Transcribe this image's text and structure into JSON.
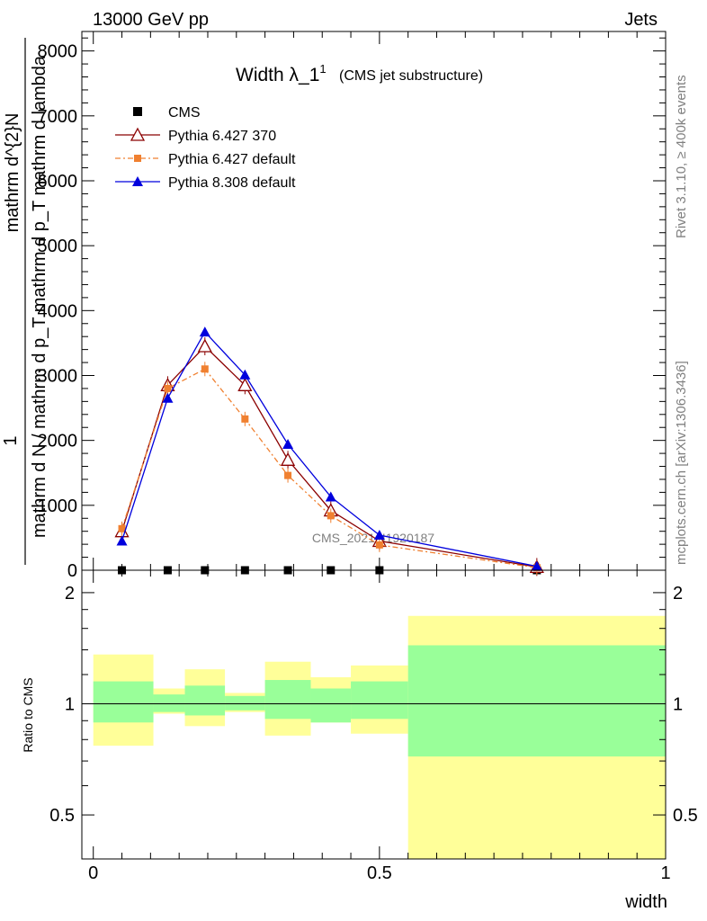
{
  "header": {
    "energy_label": "13000 GeV pp",
    "category_label": "Jets",
    "side_label_top": "Rivet 3.1.10, ≥ 400k events",
    "side_label_bottom": "mcplots.cern.ch [arXiv:1306.3436]",
    "watermark": "CMS_2021_I1920187"
  },
  "chart_data": [
    {
      "panel": "main",
      "type": "line",
      "title": "Width λ_1",
      "title_superscript": "1",
      "subtitle": "(CMS jet substructure)",
      "xlabel": "",
      "ylabel_line1": "mathrm d^{2}N",
      "ylabel_line2_prefix": "1",
      "ylabel_line2": "mathrm d N / mathrm d p_T mathrm d p_T mathrm d lambda",
      "xlim": [
        -0.02,
        1.0
      ],
      "ylim": [
        0,
        8300
      ],
      "yticks": [
        0,
        1000,
        2000,
        3000,
        4000,
        5000,
        6000,
        7000,
        8000
      ],
      "ytick_labels": [
        "0",
        "1000",
        "2000",
        "3000",
        "4000",
        "5000",
        "6000",
        "7000",
        "8000"
      ],
      "legend": [
        "CMS",
        "Pythia 6.427 370",
        "Pythia 6.427 default",
        "Pythia 8.308 default"
      ],
      "bins": [
        [
          0.0,
          0.1
        ],
        [
          0.1,
          0.16
        ],
        [
          0.16,
          0.23
        ],
        [
          0.23,
          0.3
        ],
        [
          0.3,
          0.38
        ],
        [
          0.38,
          0.45
        ],
        [
          0.45,
          0.55
        ],
        [
          0.55,
          1.0
        ]
      ],
      "series": [
        {
          "name": "CMS",
          "color": "#000000",
          "marker": "square",
          "x": [
            0.05,
            0.13,
            0.195,
            0.265,
            0.34,
            0.415,
            0.5,
            0.775
          ],
          "y": [
            0,
            0,
            0,
            0,
            0,
            0,
            0,
            0
          ]
        },
        {
          "name": "Pythia 6.427 370",
          "color": "#8b0000",
          "marker": "triangle-open",
          "dash": "",
          "x": [
            0.05,
            0.13,
            0.195,
            0.265,
            0.34,
            0.415,
            0.5,
            0.775
          ],
          "y": [
            600,
            2850,
            3450,
            2850,
            1700,
            920,
            450,
            50
          ]
        },
        {
          "name": "Pythia 6.427 default",
          "color": "#f08030",
          "marker": "square-small",
          "dash": "6,3,2,3",
          "x": [
            0.05,
            0.13,
            0.195,
            0.265,
            0.34,
            0.415,
            0.5,
            0.775
          ],
          "y": [
            640,
            2800,
            3100,
            2330,
            1460,
            840,
            390,
            40
          ]
        },
        {
          "name": "Pythia 8.308 default",
          "color": "#0000dd",
          "marker": "triangle",
          "dash": "",
          "x": [
            0.05,
            0.13,
            0.195,
            0.265,
            0.34,
            0.415,
            0.5,
            0.775
          ],
          "y": [
            450,
            2650,
            3670,
            3010,
            1940,
            1130,
            540,
            60
          ]
        }
      ]
    },
    {
      "panel": "ratio",
      "type": "area",
      "ylabel": "Ratio to CMS",
      "xlabel": "width",
      "ylim": [
        0.38,
        2.3
      ],
      "xlim": [
        -0.02,
        1.0
      ],
      "yticks": [
        0.5,
        1,
        2
      ],
      "ytick_labels": [
        "0.5",
        "1",
        "2"
      ],
      "xticks": [
        0,
        0.5,
        1
      ],
      "xtick_labels": [
        "0",
        "0.5",
        "1"
      ],
      "reference": 1,
      "band_colors": {
        "inner": "#99ff99",
        "outer": "#ffff99"
      },
      "bands": [
        {
          "x0": 0.0,
          "x1": 0.105,
          "inner": [
            0.89,
            1.15
          ],
          "outer": [
            0.77,
            1.36
          ]
        },
        {
          "x0": 0.105,
          "x1": 0.16,
          "inner": [
            0.95,
            1.06
          ],
          "outer": [
            0.94,
            1.1
          ]
        },
        {
          "x0": 0.16,
          "x1": 0.23,
          "inner": [
            0.93,
            1.12
          ],
          "outer": [
            0.87,
            1.24
          ]
        },
        {
          "x0": 0.23,
          "x1": 0.3,
          "inner": [
            0.96,
            1.05
          ],
          "outer": [
            0.95,
            1.07
          ]
        },
        {
          "x0": 0.3,
          "x1": 0.38,
          "inner": [
            0.91,
            1.16
          ],
          "outer": [
            0.82,
            1.3
          ]
        },
        {
          "x0": 0.38,
          "x1": 0.45,
          "inner": [
            0.89,
            1.1
          ],
          "outer": [
            0.89,
            1.18
          ]
        },
        {
          "x0": 0.45,
          "x1": 0.55,
          "inner": [
            0.91,
            1.15
          ],
          "outer": [
            0.83,
            1.27
          ]
        },
        {
          "x0": 0.55,
          "x1": 1.0,
          "inner": [
            0.72,
            1.44
          ],
          "outer": [
            0.38,
            1.73
          ]
        }
      ]
    }
  ]
}
